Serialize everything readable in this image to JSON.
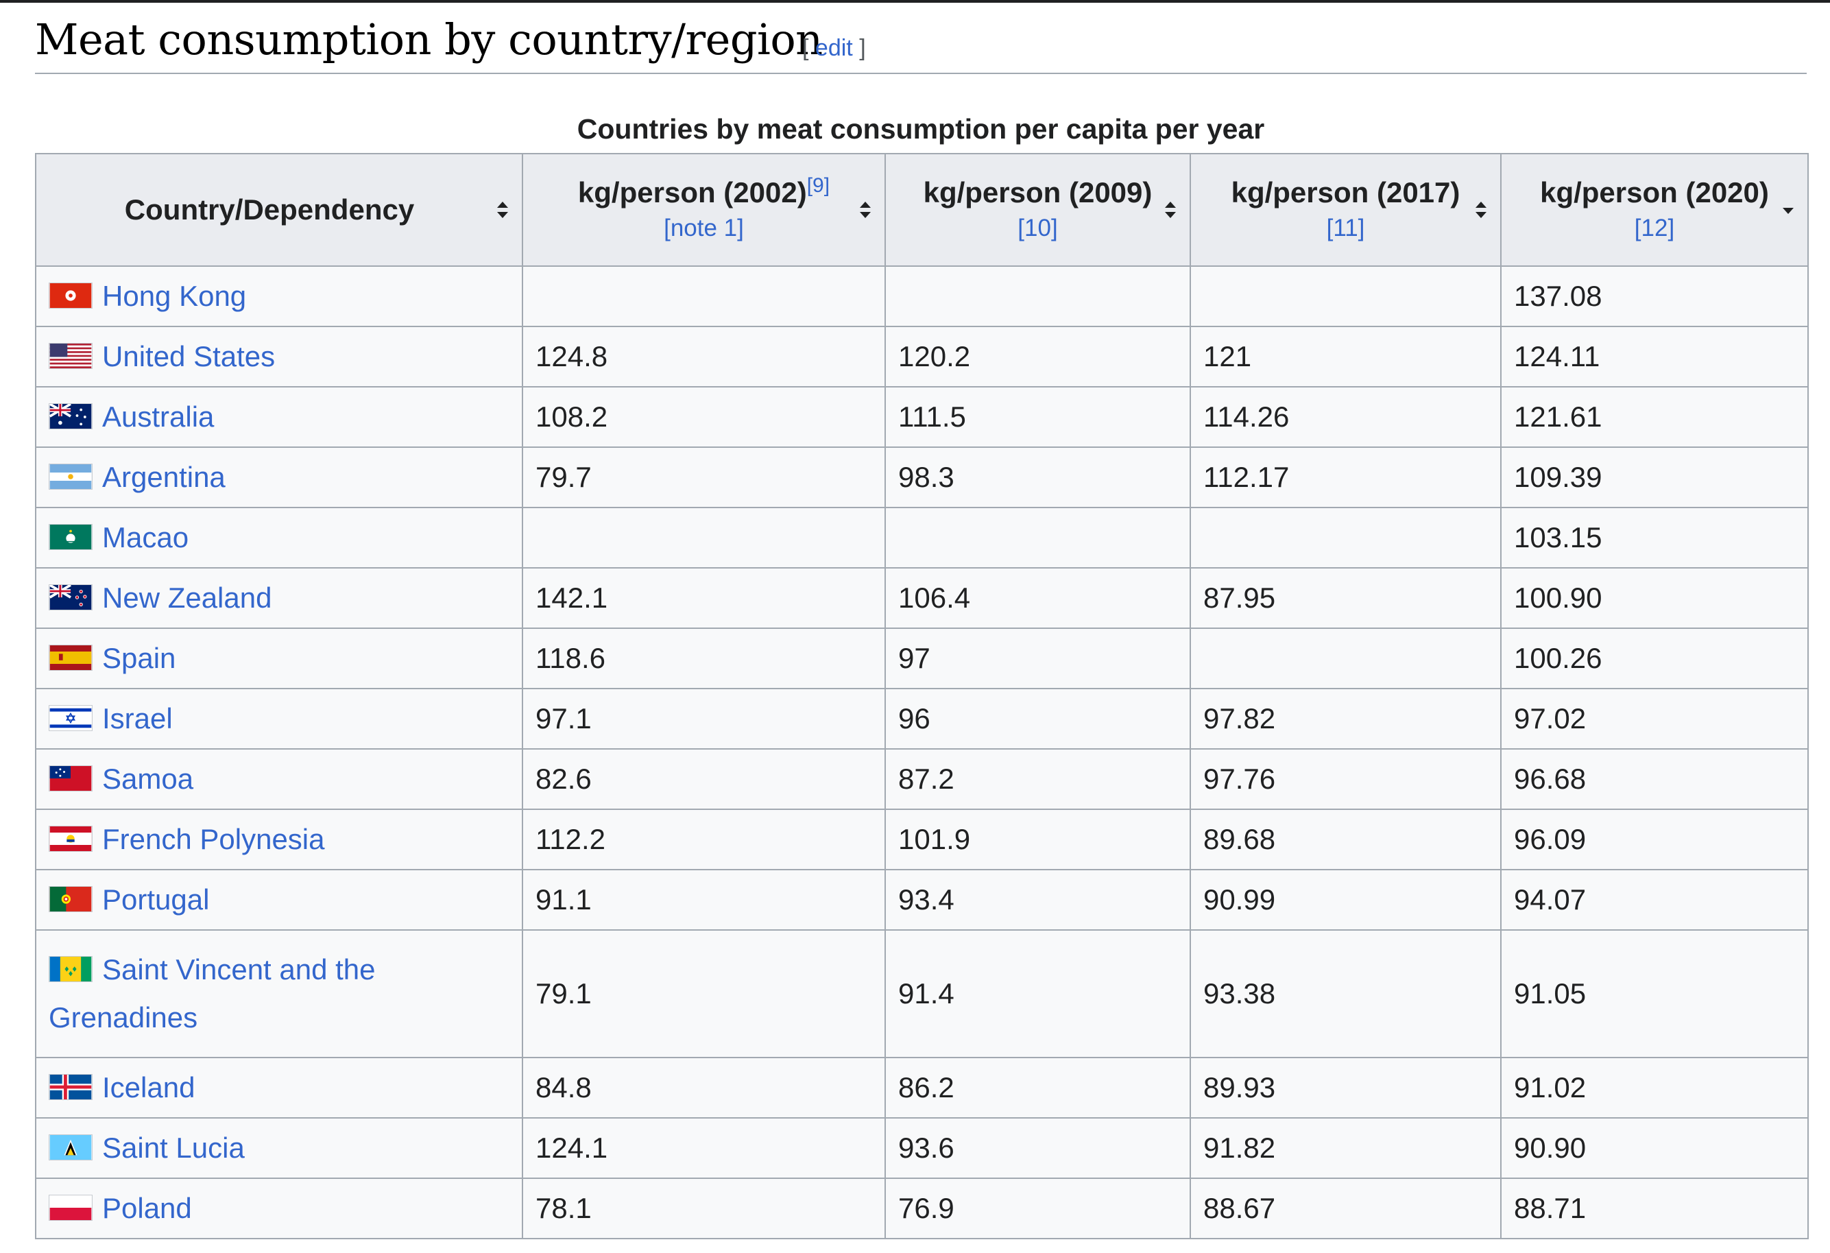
{
  "heading": {
    "title": "Meat consumption by country/region",
    "edit_open": "[",
    "edit_label": "edit",
    "edit_close": "]"
  },
  "table": {
    "caption": "Countries by meat consumption per capita per year",
    "columns": [
      {
        "label": "Country/Dependency",
        "ref": "",
        "note": ""
      },
      {
        "label": "kg/person (2002)",
        "ref": "[9]",
        "note": "[note 1]"
      },
      {
        "label": "kg/person (2009)",
        "ref": "",
        "note": "[10]"
      },
      {
        "label": "kg/person (2017)",
        "ref": "",
        "note": "[11]"
      },
      {
        "label": "kg/person (2020)",
        "ref": "",
        "note": "[12]"
      }
    ],
    "rows": [
      {
        "country": "Hong Kong",
        "flag": "hong-kong",
        "y2002": "",
        "y2009": "",
        "y2017": "",
        "y2020": "137.08"
      },
      {
        "country": "United States",
        "flag": "united-states",
        "y2002": "124.8",
        "y2009": "120.2",
        "y2017": "121",
        "y2020": "124.11"
      },
      {
        "country": "Australia",
        "flag": "australia",
        "y2002": "108.2",
        "y2009": "111.5",
        "y2017": "114.26",
        "y2020": "121.61"
      },
      {
        "country": "Argentina",
        "flag": "argentina",
        "y2002": "79.7",
        "y2009": "98.3",
        "y2017": "112.17",
        "y2020": "109.39"
      },
      {
        "country": "Macao",
        "flag": "macao",
        "y2002": "",
        "y2009": "",
        "y2017": "",
        "y2020": "103.15"
      },
      {
        "country": "New Zealand",
        "flag": "new-zealand",
        "y2002": "142.1",
        "y2009": "106.4",
        "y2017": "87.95",
        "y2020": "100.90"
      },
      {
        "country": "Spain",
        "flag": "spain",
        "y2002": "118.6",
        "y2009": "97",
        "y2017": "",
        "y2020": "100.26"
      },
      {
        "country": "Israel",
        "flag": "israel",
        "y2002": "97.1",
        "y2009": "96",
        "y2017": "97.82",
        "y2020": "97.02"
      },
      {
        "country": "Samoa",
        "flag": "samoa",
        "y2002": "82.6",
        "y2009": "87.2",
        "y2017": "97.76",
        "y2020": "96.68"
      },
      {
        "country": "French Polynesia",
        "flag": "french-polynesia",
        "y2002": "112.2",
        "y2009": "101.9",
        "y2017": "89.68",
        "y2020": "96.09"
      },
      {
        "country": "Portugal",
        "flag": "portugal",
        "y2002": "91.1",
        "y2009": "93.4",
        "y2017": "90.99",
        "y2020": "94.07"
      },
      {
        "country": "Saint Vincent and the Grenadines",
        "flag": "saint-vincent",
        "y2002": "79.1",
        "y2009": "91.4",
        "y2017": "93.38",
        "y2020": "91.05"
      },
      {
        "country": "Iceland",
        "flag": "iceland",
        "y2002": "84.8",
        "y2009": "86.2",
        "y2017": "89.93",
        "y2020": "91.02"
      },
      {
        "country": "Saint Lucia",
        "flag": "saint-lucia",
        "y2002": "124.1",
        "y2009": "93.6",
        "y2017": "91.82",
        "y2020": "90.90"
      },
      {
        "country": "Poland",
        "flag": "poland",
        "y2002": "78.1",
        "y2009": "76.9",
        "y2017": "88.67",
        "y2020": "88.71"
      }
    ]
  },
  "sort_icons": [
    "sort-both-icon",
    "sort-both-icon",
    "sort-both-icon",
    "sort-both-icon",
    "sort-descending-icon"
  ],
  "colors": {
    "link": "#3366cc",
    "header_bg": "#eaecf0",
    "cell_bg": "#f8f9fa",
    "border": "#a2a9b1"
  }
}
